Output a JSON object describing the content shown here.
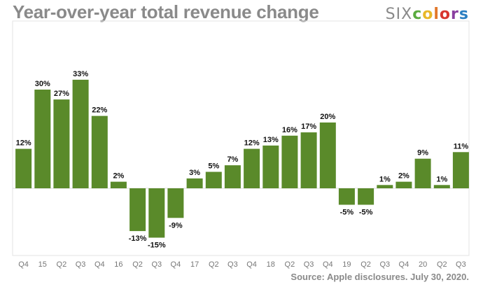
{
  "brand": {
    "text_six": "SIX",
    "letters": [
      {
        "ch": "c",
        "color": "#5aab3e"
      },
      {
        "ch": "o",
        "color": "#e8b828"
      },
      {
        "ch": "l",
        "color": "#e2782a"
      },
      {
        "ch": "o",
        "color": "#d8362f"
      },
      {
        "ch": "r",
        "color": "#8a3fa0"
      },
      {
        "ch": "s",
        "color": "#2b7fc2"
      }
    ]
  },
  "source_note": "Source: Apple disclosures. July 30, 2020.",
  "colors": {
    "bar": "#5a8a2a",
    "axis": "#dddddd",
    "frame": "#e3e3e3"
  },
  "chart_data": {
    "type": "bar",
    "title": "Year-over-year total revenue change",
    "categories": [
      "Q4",
      "15",
      "Q2",
      "Q3",
      "Q4",
      "16",
      "Q2",
      "Q3",
      "Q4",
      "17",
      "Q2",
      "Q3",
      "Q4",
      "18",
      "Q2",
      "Q3",
      "Q4",
      "19",
      "Q2",
      "Q3",
      "Q4",
      "20",
      "Q2",
      "Q3"
    ],
    "values": [
      12,
      30,
      27,
      33,
      22,
      2,
      -13,
      -15,
      -9,
      3,
      5,
      7,
      12,
      13,
      16,
      17,
      20,
      -5,
      -5,
      1,
      2,
      9,
      1,
      11
    ],
    "data_labels": [
      "12%",
      "30%",
      "27%",
      "33%",
      "22%",
      "2%",
      "-13%",
      "-15%",
      "-9%",
      "3%",
      "5%",
      "7%",
      "12%",
      "13%",
      "16%",
      "17%",
      "20%",
      "-5%",
      "-5%",
      "1%",
      "2%",
      "9%",
      "1%",
      "11%"
    ],
    "ylim": [
      -20,
      40
    ],
    "grid": false,
    "legend": "none",
    "xlabel": "",
    "ylabel": ""
  }
}
